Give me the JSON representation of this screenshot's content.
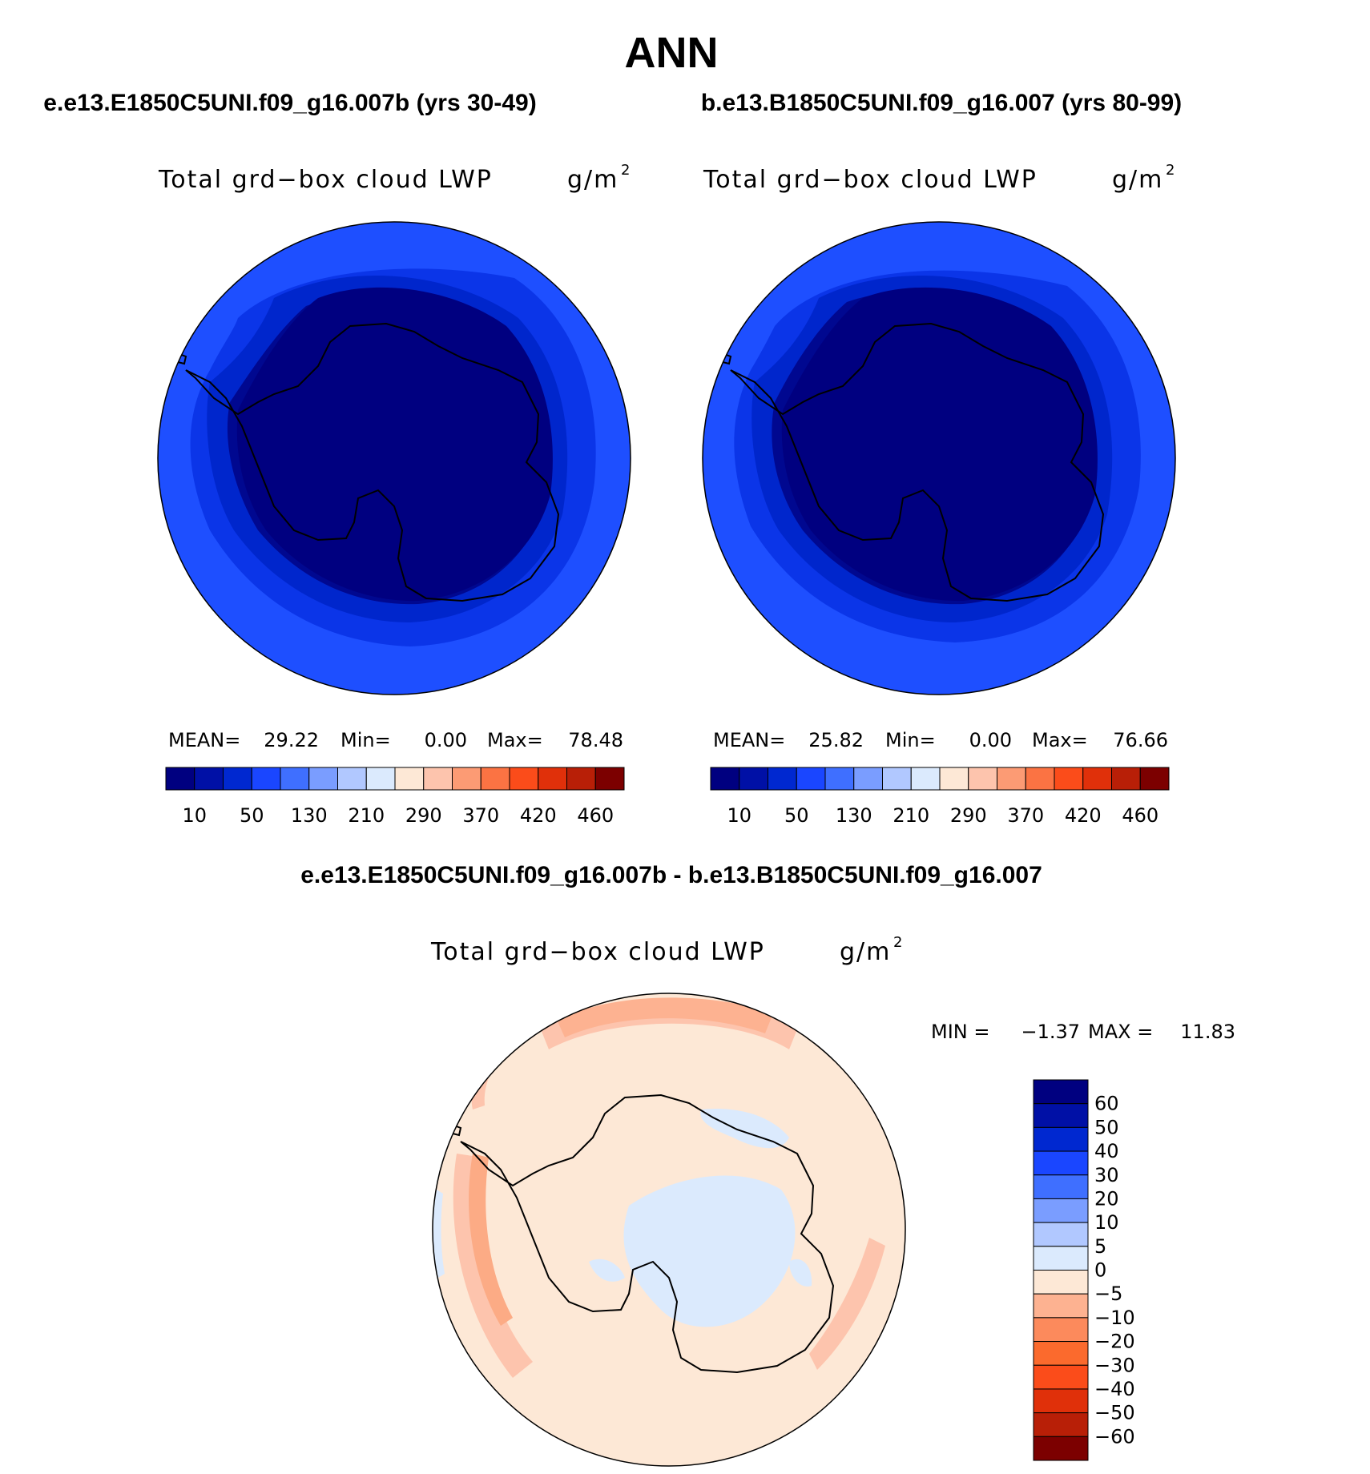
{
  "figure": {
    "title": "ANN",
    "subtitle_left": "e.e13.E1850C5UNI.f09_g16.007b (yrs 30-49)",
    "subtitle_right": "b.e13.B1850C5UNI.f09_g16.007 (yrs 80-99)",
    "diff_title": "e.e13.E1850C5UNI.f09_g16.007b - b.e13.B1850C5UNI.f09_g16.007"
  },
  "panels": [
    {
      "variable": "Total grd−box cloud LWP",
      "units_base": "g/m",
      "units_sup": "2",
      "mean_label": "MEAN=",
      "mean_value": "29.22",
      "min_label": "Min=",
      "min_value": "0.00",
      "max_label": "Max=",
      "max_value": "78.48"
    },
    {
      "variable": "Total grd−box cloud LWP",
      "units_base": "g/m",
      "units_sup": "2",
      "mean_label": "MEAN=",
      "mean_value": "25.82",
      "min_label": "Min=",
      "min_value": "0.00",
      "max_label": "Max=",
      "max_value": "76.66"
    }
  ],
  "diff_panel": {
    "variable": "Total grd−box cloud LWP",
    "units_base": "g/m",
    "units_sup": "2",
    "min_label": "MIN  =",
    "min_value": "−1.37",
    "max_label": "MAX  =",
    "max_value": "11.83"
  },
  "abs_colorbar": {
    "colors": [
      "#000080",
      "#0010a6",
      "#0028d0",
      "#1a46ff",
      "#3f6fff",
      "#7a9dff",
      "#b1c8ff",
      "#dbeafd",
      "#fde8d6",
      "#fdc4ad",
      "#fc9b74",
      "#fb7343",
      "#fb4c1a",
      "#e0300a",
      "#b81f07",
      "#7c0000"
    ],
    "tick_labels": [
      "10",
      "50",
      "130",
      "210",
      "290",
      "370",
      "420",
      "460"
    ]
  },
  "diff_colorbar": {
    "colors": [
      "#000080",
      "#0010a6",
      "#0028d0",
      "#1a46ff",
      "#3f6fff",
      "#7a9dff",
      "#b1c8ff",
      "#dbeafd",
      "#fde8d6",
      "#fdb291",
      "#fc8a5c",
      "#fb6a2d",
      "#fb4c1a",
      "#e0300a",
      "#b81f07",
      "#7c0000"
    ],
    "tick_labels": [
      "60",
      "50",
      "40",
      "30",
      "20",
      "10",
      "5",
      "0",
      "−5",
      "−10",
      "−20",
      "−30",
      "−40",
      "−50",
      "−60"
    ]
  }
}
